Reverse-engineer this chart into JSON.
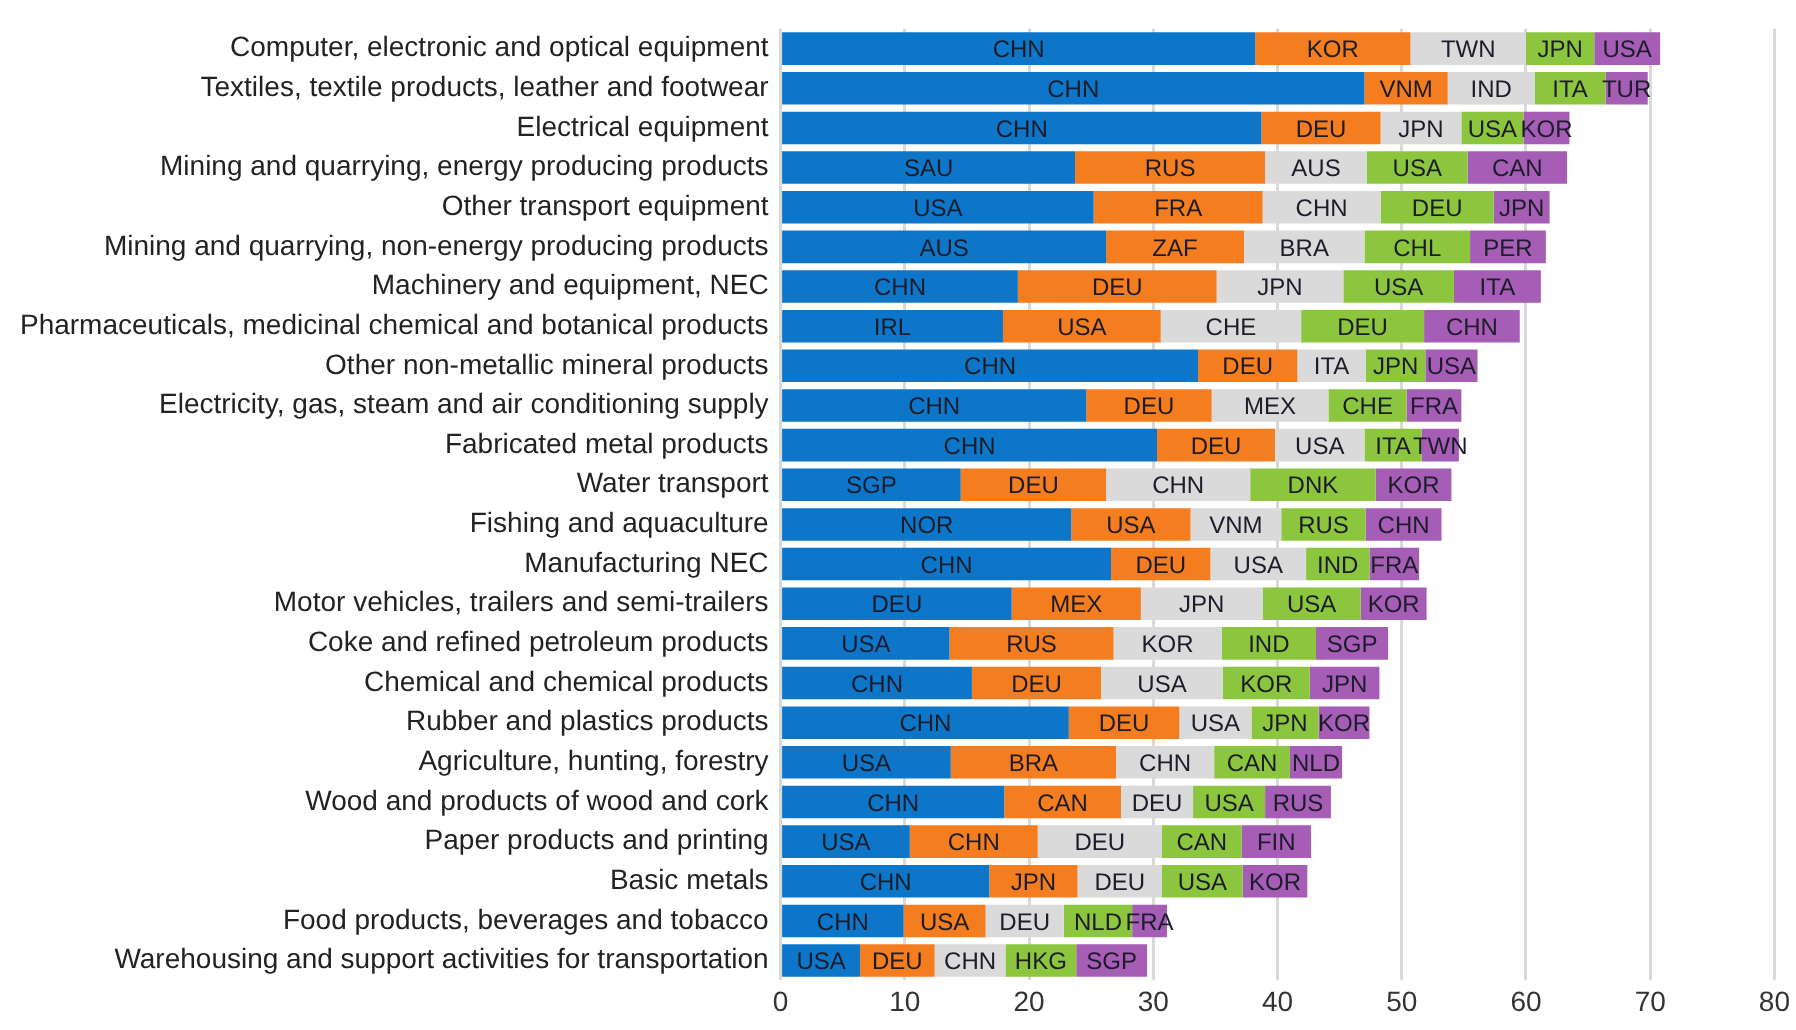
{
  "chart_data": {
    "type": "bar",
    "orientation": "horizontal",
    "stacked": true,
    "grid": "x",
    "categories": [
      "Computer, electronic and optical equipment",
      "Textiles, textile products, leather and footwear",
      "Electrical equipment",
      "Mining and quarrying, energy producing products",
      "Other transport equipment",
      "Mining and quarrying, non-energy producing products",
      "Machinery and equipment, NEC",
      "Pharmaceuticals, medicinal chemical and botanical products",
      "Other non-metallic mineral products",
      "Electricity, gas, steam and air conditioning supply",
      "Fabricated metal products",
      "Water transport",
      "Fishing and aquaculture",
      "Manufacturing NEC",
      "Motor vehicles, trailers and semi-trailers",
      "Coke and refined petroleum products",
      "Chemical and chemical products",
      "Rubber and plastics products",
      "Agriculture, hunting, forestry",
      "Wood and products of wood and cork",
      "Paper products and printing",
      "Basic metals",
      "Food products, beverages and tobacco",
      "Warehousing and support activities for transportation"
    ],
    "xlim": [
      0,
      80
    ],
    "xticks": [
      0,
      10,
      20,
      30,
      40,
      50,
      60,
      70,
      80
    ],
    "series": [
      {
        "color": "#0e76c8",
        "values": [
          38.2,
          47.0,
          38.7,
          23.7,
          25.2,
          26.2,
          19.1,
          17.9,
          33.6,
          24.6,
          30.3,
          14.5,
          23.4,
          26.6,
          18.6,
          13.6,
          15.4,
          23.2,
          13.7,
          18.0,
          10.4,
          16.8,
          9.9,
          6.4
        ],
        "value_labels": [
          "CHN",
          "CHN",
          "CHN",
          "SAU",
          "USA",
          "AUS",
          "CHN",
          "IRL",
          "CHN",
          "CHN",
          "CHN",
          "SGP",
          "NOR",
          "CHN",
          "DEU",
          "USA",
          "CHN",
          "CHN",
          "USA",
          "CHN",
          "USA",
          "CHN",
          "CHN",
          "USA"
        ]
      },
      {
        "color": "#f47d20",
        "values": [
          12.5,
          6.7,
          9.6,
          15.3,
          13.6,
          11.1,
          16.0,
          12.7,
          8.0,
          10.1,
          9.5,
          11.7,
          9.6,
          8.0,
          10.4,
          13.2,
          10.4,
          8.9,
          13.3,
          9.4,
          10.3,
          7.1,
          6.6,
          6.0
        ],
        "value_labels": [
          "KOR",
          "VNM",
          "DEU",
          "RUS",
          "FRA",
          "ZAF",
          "DEU",
          "USA",
          "DEU",
          "DEU",
          "DEU",
          "DEU",
          "USA",
          "DEU",
          "MEX",
          "RUS",
          "DEU",
          "DEU",
          "BRA",
          "CAN",
          "CHN",
          "JPN",
          "USA",
          "DEU"
        ]
      },
      {
        "color": "#dadada",
        "values": [
          9.3,
          7.0,
          6.5,
          8.2,
          9.5,
          9.7,
          10.2,
          11.3,
          5.5,
          9.4,
          7.2,
          11.6,
          7.3,
          7.7,
          9.8,
          8.7,
          9.8,
          5.8,
          7.9,
          5.8,
          10.0,
          6.8,
          6.3,
          5.7
        ],
        "value_labels": [
          "TWN",
          "IND",
          "JPN",
          "AUS",
          "CHN",
          "BRA",
          "JPN",
          "CHE",
          "ITA",
          "MEX",
          "USA",
          "CHN",
          "VNM",
          "USA",
          "JPN",
          "KOR",
          "USA",
          "USA",
          "CHN",
          "DEU",
          "DEU",
          "DEU",
          "DEU",
          "CHN"
        ]
      },
      {
        "color": "#8cc63f",
        "values": [
          5.5,
          5.7,
          5.0,
          8.1,
          9.1,
          8.5,
          8.9,
          9.9,
          4.8,
          6.3,
          4.6,
          10.1,
          6.8,
          5.1,
          7.9,
          7.6,
          7.0,
          5.4,
          6.1,
          5.8,
          6.4,
          6.5,
          5.5,
          5.7
        ],
        "value_labels": [
          "JPN",
          "ITA",
          "USA",
          "USA",
          "DEU",
          "CHL",
          "USA",
          "DEU",
          "JPN",
          "CHE",
          "ITA",
          "DNK",
          "RUS",
          "IND",
          "USA",
          "IND",
          "KOR",
          "JPN",
          "CAN",
          "USA",
          "CAN",
          "USA",
          "NLD",
          "HKG"
        ]
      },
      {
        "color": "#a55db5",
        "values": [
          5.3,
          3.4,
          3.7,
          8.0,
          4.5,
          6.1,
          7.0,
          7.7,
          4.2,
          4.4,
          3.0,
          6.1,
          6.1,
          4.0,
          5.3,
          5.8,
          5.6,
          4.1,
          4.2,
          5.3,
          5.6,
          5.2,
          2.8,
          5.7
        ],
        "value_labels": [
          "USA",
          "TUR",
          "KOR",
          "CAN",
          "JPN",
          "PER",
          "ITA",
          "CHN",
          "USA",
          "FRA",
          "TWN",
          "KOR",
          "CHN",
          "FRA",
          "KOR",
          "SGP",
          "JPN",
          "KOR",
          "NLD",
          "RUS",
          "FIN",
          "KOR",
          "FRA",
          "SGP"
        ]
      }
    ]
  }
}
